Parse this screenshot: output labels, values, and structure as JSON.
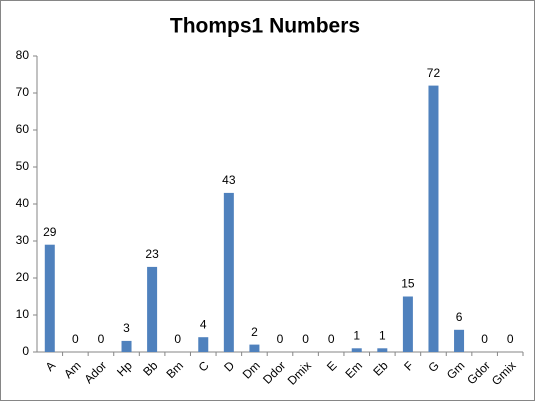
{
  "chart_data": {
    "type": "bar",
    "title": "Thomps1 Numbers",
    "categories": [
      "A",
      "Am",
      "Ador",
      "Hp",
      "Bb",
      "Bm",
      "C",
      "D",
      "Dm",
      "Ddor",
      "Dmix",
      "E",
      "Em",
      "Eb",
      "F",
      "G",
      "Gm",
      "Gdor",
      "Gmix"
    ],
    "values": [
      29,
      0,
      0,
      3,
      23,
      0,
      4,
      43,
      2,
      0,
      0,
      0,
      1,
      1,
      15,
      72,
      6,
      0,
      0
    ],
    "color": "#4f81bd",
    "ylim": [
      0,
      80
    ],
    "yticks": [
      0,
      10,
      20,
      30,
      40,
      50,
      60,
      70,
      80
    ],
    "grid": false,
    "data_labels": true
  }
}
